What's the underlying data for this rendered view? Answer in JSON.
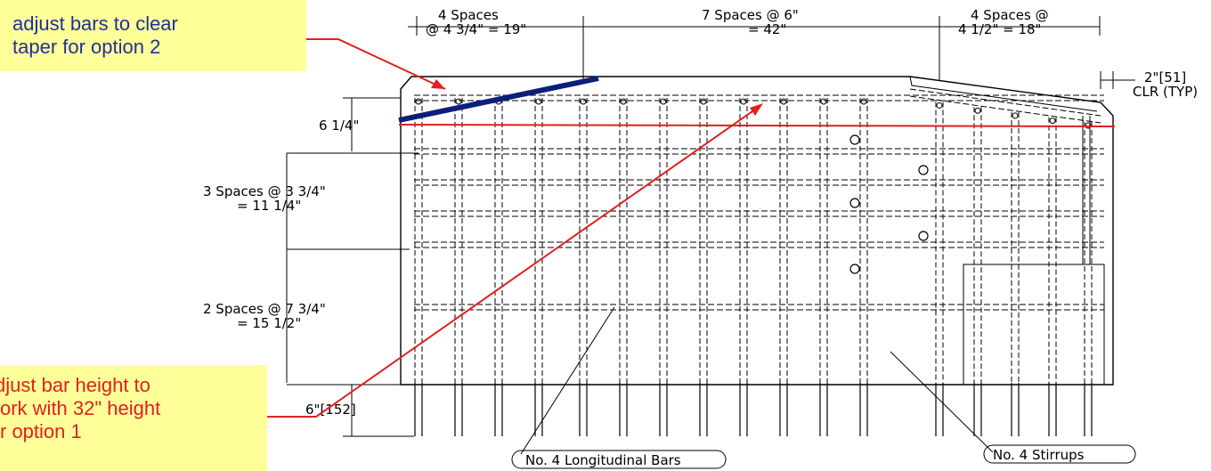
{
  "annotations": {
    "top_note": "adjust bars to clear\ntaper for option 2",
    "bottom_note": "djust bar height to\nork with 32\" height\nr option 1"
  },
  "dimensions": {
    "top_left_line1": "4  Spaces",
    "top_left_line2": "@ 4  3/4\" = 19\"",
    "top_mid": "7  Spaces  @  6\"",
    "top_mid_line2": "= 42\"",
    "top_right_line1": "4  Spaces  @",
    "top_right_line2": "4  1/2\" = 18\"",
    "clear_line1": "2\"[51]",
    "clear_line2": "CLR  (TYP)",
    "left_1": "6  1/4\"",
    "left_2_line1": "3  Spaces  @  3  3/4\"",
    "left_2_line2": "= 11  1/4\"",
    "left_3_line1": "2  Spaces  @  7  3/4\"",
    "left_3_line2": "= 15  1/2\"",
    "bottom_left": "6\"[152]"
  },
  "labels": {
    "longitudinal": "No. 4  Longitudinal  Bars",
    "stirrups": "No. 4  Stirrups"
  },
  "colors": {
    "annotation_red": "#e02020",
    "annotation_blue": "#1f2f9a",
    "note_fill": "#ffff99",
    "thick_bar": "#0b1f7a"
  }
}
